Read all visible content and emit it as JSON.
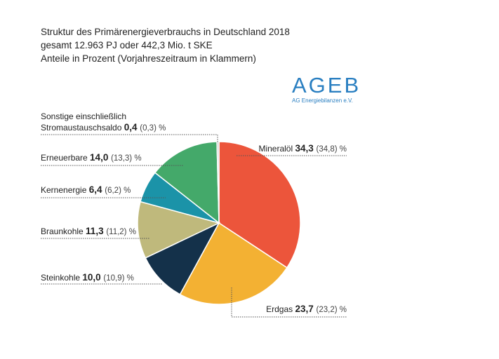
{
  "header": {
    "title": "Struktur des Primärenergieverbrauchs in Deutschland 2018",
    "subtitle1": "gesamt 12.963 PJ oder 442,3 Mio. t SKE",
    "subtitle2": "Anteile in Prozent (Vorjahreszeitraum in Klammern)"
  },
  "logo": {
    "text": "AGEB",
    "subtext": "AG Energiebilanzen e.V."
  },
  "chart_data": {
    "type": "pie",
    "unit": "%",
    "slices": [
      {
        "name": "Mineralöl",
        "value": 34.3,
        "value_label": "34,3",
        "prev_label": "(34,8)",
        "color": "#ec553b"
      },
      {
        "name": "Erdgas",
        "value": 23.7,
        "value_label": "23,7",
        "prev_label": "(23,2)",
        "color": "#f3b133"
      },
      {
        "name": "Steinkohle",
        "value": 10.0,
        "value_label": "10,0",
        "prev_label": "(10,9)",
        "color": "#14314a"
      },
      {
        "name": "Braunkohle",
        "value": 11.3,
        "value_label": "11,3",
        "prev_label": "(11,2)",
        "color": "#bfb97c"
      },
      {
        "name": "Kernenergie",
        "value": 6.4,
        "value_label": "6,4",
        "prev_label": "(6,2)",
        "color": "#1b93a8"
      },
      {
        "name": "Erneuerbare",
        "value": 14.0,
        "value_label": "14,0",
        "prev_label": "(13,3)",
        "color": "#44a96a"
      },
      {
        "name": "Sonstige einschließlich Stromaustauschsaldo",
        "name_line1": "Sonstige einschließlich",
        "name_line2": "Stromaustauschsaldo",
        "value": 0.4,
        "value_label": "0,4",
        "prev_label": "(0,3)",
        "color": "#cccccc"
      }
    ]
  }
}
